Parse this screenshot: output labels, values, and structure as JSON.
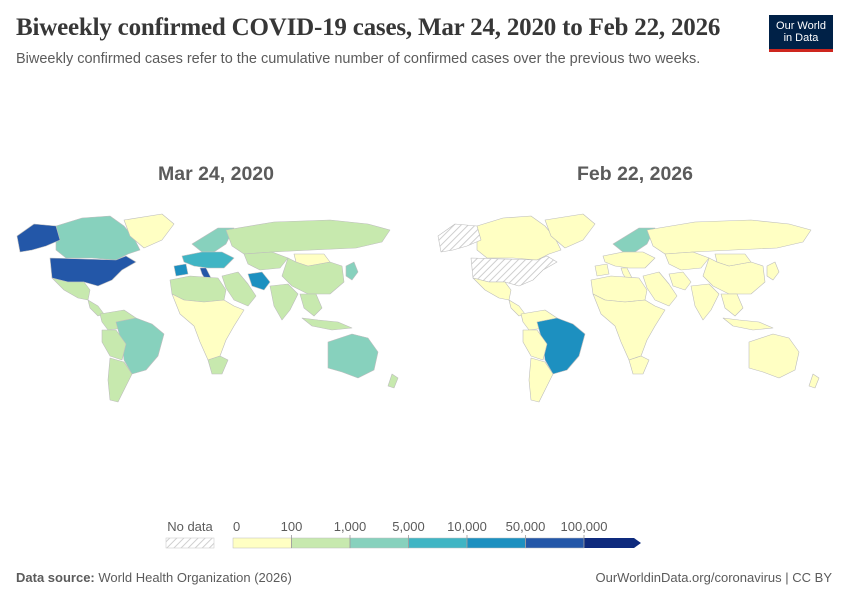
{
  "header": {
    "title": "Biweekly confirmed COVID-19 cases, Mar 24, 2020 to Feb 22, 2026",
    "subtitle": "Biweekly confirmed cases refer to the cumulative number of confirmed cases over the previous two weeks.",
    "logo_line1": "Our World",
    "logo_line2": "in Data"
  },
  "colors": {
    "no_data": "#e6e6e6",
    "borders": "#bdbdbd",
    "bins": [
      "#ffffc3",
      "#c7e9ae",
      "#87d1bd",
      "#40b5c4",
      "#1d90c0",
      "#2357a8",
      "#0e2a7d"
    ]
  },
  "maps": {
    "left": {
      "date": "Mar 24, 2020",
      "regions": [
        {
          "name": "canada",
          "bin": 2
        },
        {
          "name": "alaska",
          "bin": 5
        },
        {
          "name": "usa",
          "bin": 5
        },
        {
          "name": "greenland",
          "bin": 0
        },
        {
          "name": "mexico",
          "bin": 1
        },
        {
          "name": "central-america",
          "bin": 1
        },
        {
          "name": "colombia-venezuela",
          "bin": 1
        },
        {
          "name": "brazil",
          "bin": 2
        },
        {
          "name": "peru-bolivia",
          "bin": 1
        },
        {
          "name": "argentina-chile",
          "bin": 1
        },
        {
          "name": "europe-north",
          "bin": 2
        },
        {
          "name": "europe-west",
          "bin": 3
        },
        {
          "name": "spain",
          "bin": 4
        },
        {
          "name": "italy",
          "bin": 5
        },
        {
          "name": "russia",
          "bin": 1
        },
        {
          "name": "kazakhstan",
          "bin": 1
        },
        {
          "name": "north-africa",
          "bin": 1
        },
        {
          "name": "africa",
          "bin": 0
        },
        {
          "name": "south-africa",
          "bin": 1
        },
        {
          "name": "middle-east",
          "bin": 1
        },
        {
          "name": "iran",
          "bin": 4
        },
        {
          "name": "india",
          "bin": 1
        },
        {
          "name": "china",
          "bin": 1
        },
        {
          "name": "mongolia",
          "bin": 0
        },
        {
          "name": "southeast-asia",
          "bin": 1
        },
        {
          "name": "indonesia",
          "bin": 1
        },
        {
          "name": "japan-korea",
          "bin": 2
        },
        {
          "name": "australia",
          "bin": 2
        },
        {
          "name": "new-zealand",
          "bin": 1
        }
      ]
    },
    "right": {
      "date": "Feb 22, 2026",
      "regions": [
        {
          "name": "canada",
          "bin": 0
        },
        {
          "name": "alaska",
          "bin": -1
        },
        {
          "name": "usa",
          "bin": -1
        },
        {
          "name": "greenland",
          "bin": 0
        },
        {
          "name": "mexico",
          "bin": 0
        },
        {
          "name": "central-america",
          "bin": 0
        },
        {
          "name": "colombia-venezuela",
          "bin": 0
        },
        {
          "name": "brazil",
          "bin": 4
        },
        {
          "name": "peru-bolivia",
          "bin": 0
        },
        {
          "name": "argentina-chile",
          "bin": 0
        },
        {
          "name": "europe-north",
          "bin": 2
        },
        {
          "name": "europe-west",
          "bin": 0
        },
        {
          "name": "spain",
          "bin": 0
        },
        {
          "name": "italy",
          "bin": 0
        },
        {
          "name": "russia",
          "bin": 0
        },
        {
          "name": "kazakhstan",
          "bin": 0
        },
        {
          "name": "north-africa",
          "bin": 0
        },
        {
          "name": "africa",
          "bin": 0
        },
        {
          "name": "south-africa",
          "bin": 0
        },
        {
          "name": "middle-east",
          "bin": 0
        },
        {
          "name": "iran",
          "bin": 0
        },
        {
          "name": "india",
          "bin": 0
        },
        {
          "name": "china",
          "bin": 0
        },
        {
          "name": "mongolia",
          "bin": 0
        },
        {
          "name": "southeast-asia",
          "bin": 0
        },
        {
          "name": "indonesia",
          "bin": 0
        },
        {
          "name": "japan-korea",
          "bin": 0
        },
        {
          "name": "australia",
          "bin": 0
        },
        {
          "name": "new-zealand",
          "bin": 0
        }
      ]
    }
  },
  "legend": {
    "no_data_label": "No data",
    "tick_labels": [
      "0",
      "100",
      "1,000",
      "5,000",
      "10,000",
      "50,000",
      "100,000"
    ]
  },
  "footer": {
    "source_label": "Data source:",
    "source_value": "World Health Organization (2026)",
    "right": "OurWorldinData.org/coronavirus | CC BY"
  }
}
